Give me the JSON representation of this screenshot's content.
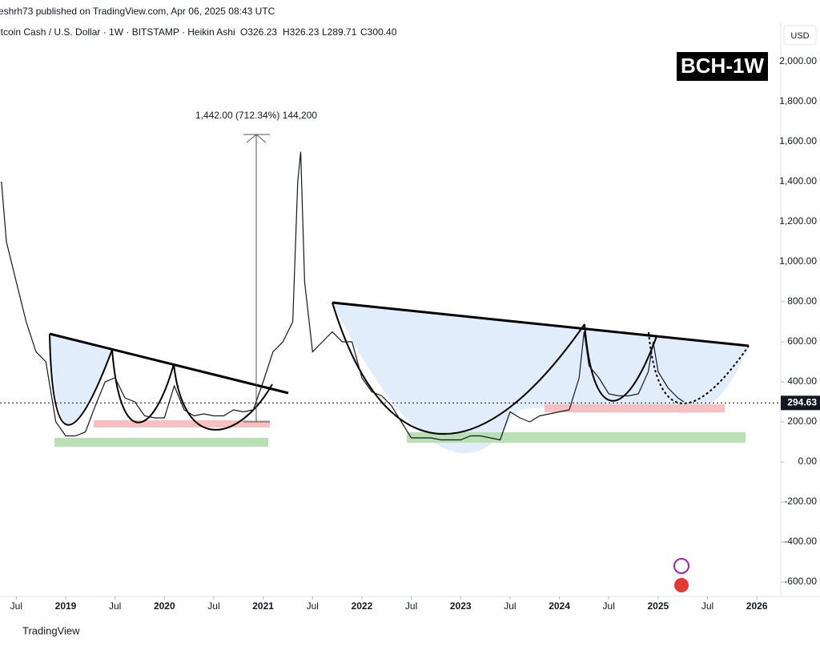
{
  "chart_data": {
    "type": "line",
    "published": "eshrh73 published on TradingView.com, Apr 06, 2025 08:43 UTC",
    "symbol": "itcoin Cash / U.S. Dollar · 1W · BITSTAMP · Heikin Ashi",
    "ohlc": [
      "O326.23",
      "H326.23",
      "L289.71",
      "C300.40"
    ],
    "badge": "BCH-1W",
    "currency": "USD",
    "footer": "TradingView",
    "annotation": "1,442.00 (712.34%) 144,200",
    "last_price": 294.63,
    "xlim": [
      2018.335,
      2026.242
    ],
    "ylim": [
      -672,
      2196
    ],
    "xticks": [
      {
        "value": 2018.5,
        "label": "Jul"
      },
      {
        "value": 2019,
        "label": "2019"
      },
      {
        "value": 2019.5,
        "label": "Jul"
      },
      {
        "value": 2020,
        "label": "2020"
      },
      {
        "value": 2020.5,
        "label": "Jul"
      },
      {
        "value": 2021,
        "label": "2021"
      },
      {
        "value": 2021.5,
        "label": "Jul"
      },
      {
        "value": 2022,
        "label": "2022"
      },
      {
        "value": 2022.5,
        "label": "Jul"
      },
      {
        "value": 2023,
        "label": "2023"
      },
      {
        "value": 2023.5,
        "label": "Jul"
      },
      {
        "value": 2024,
        "label": "2024"
      },
      {
        "value": 2024.5,
        "label": "Jul"
      },
      {
        "value": 2025,
        "label": "2025"
      },
      {
        "value": 2025.5,
        "label": "Jul"
      },
      {
        "value": 2026,
        "label": "2026"
      }
    ],
    "yticks": [
      {
        "value": -600,
        "label": "-600.00"
      },
      {
        "value": -400,
        "label": "-400.00"
      },
      {
        "value": -200,
        "label": "-200.00"
      },
      {
        "value": 0,
        "label": "0.00"
      },
      {
        "value": 200,
        "label": "200.00"
      },
      {
        "value": 400,
        "label": "400.00"
      },
      {
        "value": 600,
        "label": "600.00"
      },
      {
        "value": 800,
        "label": "800.00"
      },
      {
        "value": 1000,
        "label": "1,000.00"
      },
      {
        "value": 1200,
        "label": "1,200.00"
      },
      {
        "value": 1400,
        "label": "1,400.00"
      },
      {
        "value": 1600,
        "label": "1,600.00"
      },
      {
        "value": 1800,
        "label": "1,800.00"
      },
      {
        "value": 2000,
        "label": "2,000.00"
      }
    ],
    "series": [
      {
        "color": "#131722",
        "x": [
          2018.35,
          2018.4,
          2018.5,
          2018.6,
          2018.7,
          2018.8,
          2018.9,
          2019.0,
          2019.1,
          2019.2,
          2019.3,
          2019.4,
          2019.5,
          2019.6,
          2019.7,
          2019.8,
          2019.9,
          2020.0,
          2020.1,
          2020.2,
          2020.3,
          2020.4,
          2020.5,
          2020.6,
          2020.7,
          2020.8,
          2020.9,
          2021.0,
          2021.1,
          2021.2,
          2021.3,
          2021.35,
          2021.38,
          2021.42,
          2021.5,
          2021.6,
          2021.7,
          2021.8,
          2021.9,
          2022.0,
          2022.1,
          2022.2,
          2022.3,
          2022.4,
          2022.5,
          2022.6,
          2022.7,
          2022.8,
          2022.9,
          2023.0,
          2023.1,
          2023.2,
          2023.3,
          2023.4,
          2023.5,
          2023.6,
          2023.7,
          2023.8,
          2023.9,
          2024.0,
          2024.1,
          2024.2,
          2024.25,
          2024.3,
          2024.4,
          2024.5,
          2024.6,
          2024.7,
          2024.8,
          2024.9,
          2024.95,
          2025.0,
          2025.1,
          2025.2,
          2025.26
        ],
        "values": [
          1400,
          1100,
          900,
          700,
          550,
          500,
          200,
          130,
          130,
          150,
          280,
          400,
          420,
          320,
          300,
          230,
          220,
          220,
          380,
          260,
          230,
          240,
          230,
          230,
          260,
          250,
          260,
          400,
          550,
          600,
          700,
          1400,
          1550,
          900,
          550,
          600,
          650,
          600,
          600,
          420,
          350,
          330,
          280,
          200,
          120,
          120,
          120,
          110,
          110,
          110,
          130,
          130,
          120,
          110,
          250,
          220,
          200,
          230,
          240,
          250,
          260,
          420,
          650,
          480,
          420,
          340,
          330,
          330,
          340,
          450,
          600,
          450,
          370,
          320,
          300
        ]
      }
    ]
  }
}
